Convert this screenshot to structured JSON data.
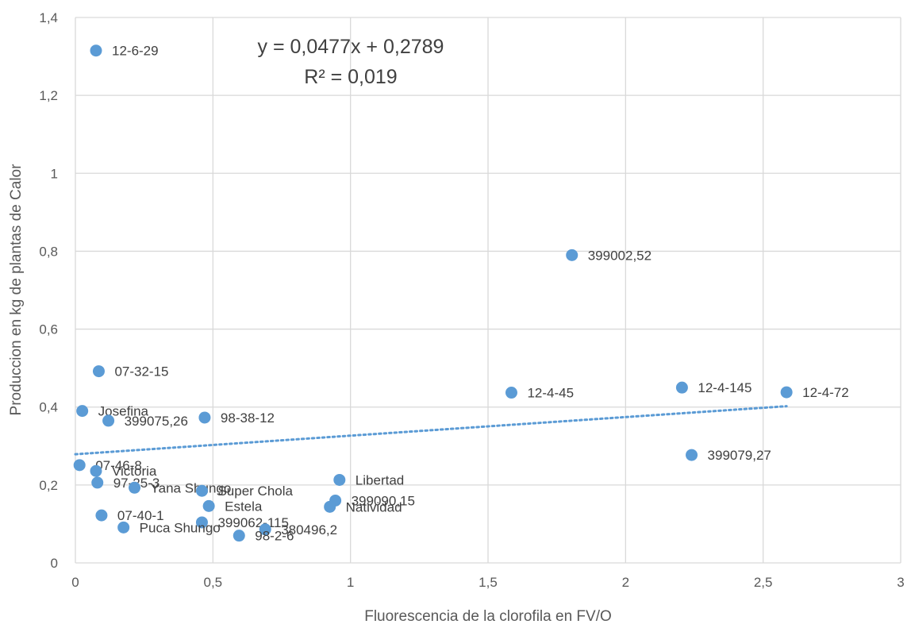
{
  "chart_data": {
    "type": "scatter",
    "xlabel": "Fluorescencia de la clorofila en FV/O",
    "ylabel": "Produccion en kg de plantas de Calor",
    "xlim": [
      0,
      3
    ],
    "ylim": [
      0,
      1.4
    ],
    "xticks": [
      0,
      0.5,
      1,
      1.5,
      2,
      2.5,
      3
    ],
    "yticks": [
      0,
      0.2,
      0.4,
      0.6,
      0.8,
      1,
      1.2,
      1.4
    ],
    "xtick_labels": [
      "0",
      "0,5",
      "1",
      "1,5",
      "2",
      "2,5",
      "3"
    ],
    "ytick_labels": [
      "0",
      "0,2",
      "0,4",
      "0,6",
      "0,8",
      "1",
      "1,2",
      "1,4"
    ],
    "grid": "vertical and horizontal",
    "marker_color": "#5b9bd5",
    "trendline_color": "#5b9bd5",
    "points": [
      {
        "label": "12-6-29",
        "x": 0.075,
        "y": 1.315
      },
      {
        "label": "399002,52",
        "x": 1.805,
        "y": 0.79
      },
      {
        "label": "07-32-15",
        "x": 0.085,
        "y": 0.492
      },
      {
        "label": "12-4-45",
        "x": 1.585,
        "y": 0.437
      },
      {
        "label": "12-4-145",
        "x": 2.205,
        "y": 0.45
      },
      {
        "label": "12-4-72",
        "x": 2.585,
        "y": 0.438
      },
      {
        "label": "Josefina",
        "x": 0.025,
        "y": 0.39
      },
      {
        "label": "399075,26",
        "x": 0.12,
        "y": 0.365
      },
      {
        "label": "98-38-12",
        "x": 0.47,
        "y": 0.373
      },
      {
        "label": "399079,27",
        "x": 2.24,
        "y": 0.277
      },
      {
        "label": "07-46-8",
        "x": 0.015,
        "y": 0.251
      },
      {
        "label": "Victoria",
        "x": 0.075,
        "y": 0.236
      },
      {
        "label": "97-25-3",
        "x": 0.08,
        "y": 0.206
      },
      {
        "label": "Yana Shungo",
        "x": 0.215,
        "y": 0.193
      },
      {
        "label": "Super Chola",
        "x": 0.46,
        "y": 0.185
      },
      {
        "label": "Libertad",
        "x": 0.96,
        "y": 0.213
      },
      {
        "label": "Estela",
        "x": 0.485,
        "y": 0.146
      },
      {
        "label": "399090,15",
        "x": 0.945,
        "y": 0.16
      },
      {
        "label": "Natividad",
        "x": 0.925,
        "y": 0.144
      },
      {
        "label": "07-40-1",
        "x": 0.095,
        "y": 0.122
      },
      {
        "label": "399062-115",
        "x": 0.46,
        "y": 0.104
      },
      {
        "label": "Puca Shungo",
        "x": 0.175,
        "y": 0.091
      },
      {
        "label": "380496,2",
        "x": 0.69,
        "y": 0.086
      },
      {
        "label": "98-2-6",
        "x": 0.595,
        "y": 0.07
      }
    ],
    "trendline": {
      "slope": 0.0477,
      "intercept": 0.2789,
      "x_range": [
        0,
        2.585
      ],
      "equation": "y = 0,0477x + 0,2789",
      "r_squared": "R² = 0,019"
    }
  }
}
